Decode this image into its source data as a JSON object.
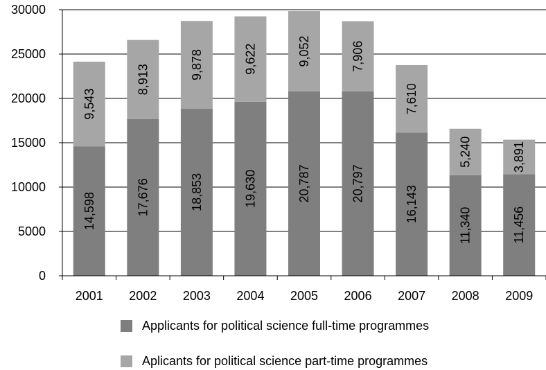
{
  "chart_data": {
    "type": "bar",
    "stacked": true,
    "categories": [
      "2001",
      "2002",
      "2003",
      "2004",
      "2005",
      "2006",
      "2007",
      "2008",
      "2009"
    ],
    "series": [
      {
        "name": "Applicants for political science full-time programmes",
        "values": [
          14598,
          17676,
          18853,
          19630,
          20787,
          20797,
          16143,
          11340,
          11456
        ],
        "labels": [
          "14,598",
          "17,676",
          "18,853",
          "19,630",
          "20,787",
          "20,797",
          "16,143",
          "11,340",
          "11,456"
        ],
        "color": "#7f7f7f"
      },
      {
        "name": "Aplicants for political science part-time programmes",
        "values": [
          9543,
          8913,
          9878,
          9622,
          9052,
          7906,
          7610,
          5240,
          3891
        ],
        "labels": [
          "9,543",
          "8,913",
          "9,878",
          "9,622",
          "9,052",
          "7,906",
          "7,610",
          "5,240",
          "3,891"
        ],
        "color": "#a6a6a6"
      }
    ],
    "ylim": [
      0,
      30000
    ],
    "yticks": [
      0,
      5000,
      10000,
      15000,
      20000,
      25000,
      30000
    ],
    "ytick_labels": [
      "0",
      "5000",
      "10000",
      "15000",
      "20000",
      "25000",
      "30000"
    ],
    "grid": true,
    "legend_position": "bottom"
  }
}
